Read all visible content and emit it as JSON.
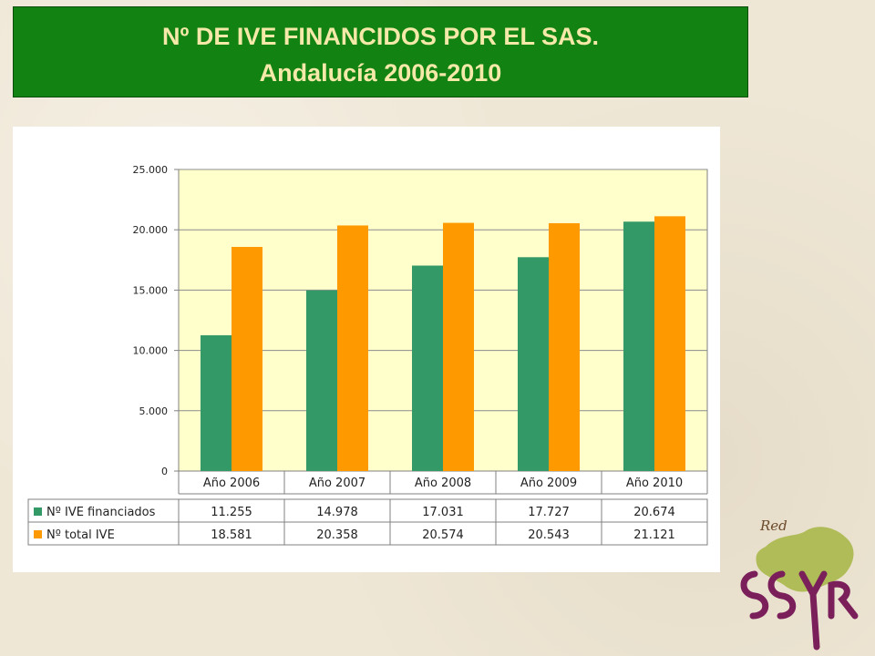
{
  "header": {
    "title_line1": "Nº DE IVE FINANCIDOS POR EL SAS.",
    "title_line2": "Andalucía 2006-2010"
  },
  "logo": {
    "text": "Red SSYR"
  },
  "colors": {
    "title_bg": "#128212",
    "title_text": "#f4e9a8",
    "plot_bg": "#ffffcc",
    "series_financiados": "#339966",
    "series_total": "#ff9900"
  },
  "chart_data": {
    "type": "bar",
    "title": "",
    "xlabel": "",
    "ylabel": "",
    "categories": [
      "Año 2006",
      "Año 2007",
      "Año 2008",
      "Año 2009",
      "Año 2010"
    ],
    "ylim": [
      0,
      25000
    ],
    "y_ticks": [
      0,
      5000,
      10000,
      15000,
      20000,
      25000
    ],
    "y_tick_labels": [
      "0",
      "5.000",
      "10.000",
      "15.000",
      "20.000",
      "25.000"
    ],
    "grid": true,
    "legend": "data-table",
    "series": [
      {
        "name": "Nº IVE financiados",
        "values": [
          11255,
          14978,
          17031,
          17727,
          20674
        ],
        "labels": [
          "11.255",
          "14.978",
          "17.031",
          "17.727",
          "20.674"
        ],
        "color": "#339966"
      },
      {
        "name": "Nº total IVE",
        "values": [
          18581,
          20358,
          20574,
          20543,
          21121
        ],
        "labels": [
          "18.581",
          "20.358",
          "20.574",
          "20.543",
          "21.121"
        ],
        "color": "#ff9900"
      }
    ]
  }
}
